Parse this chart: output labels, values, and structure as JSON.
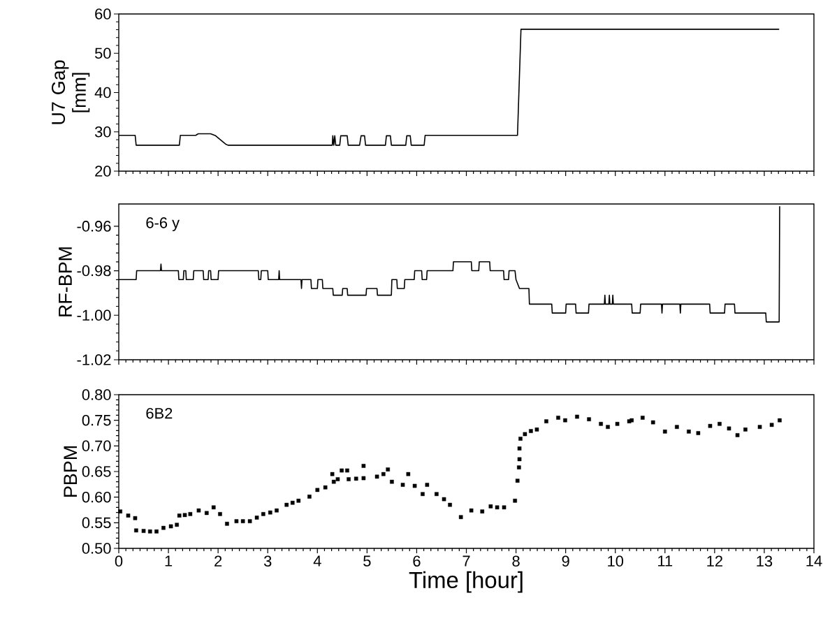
{
  "chart_data": [
    {
      "type": "line",
      "ylabel": "U7 Gap [mm]",
      "color": "#000000",
      "xlim": [
        0,
        14
      ],
      "xticks": [
        0,
        1,
        2,
        3,
        4,
        5,
        6,
        7,
        8,
        9,
        10,
        11,
        12,
        13,
        14
      ],
      "ylim": [
        20,
        60
      ],
      "yticks": [
        20,
        30,
        40,
        50,
        60
      ],
      "tick_labels": "y",
      "x": [
        0,
        0.33,
        0.35,
        1.22,
        1.24,
        1.55,
        1.6,
        1.85,
        1.95,
        2.15,
        2.2,
        4.3,
        4.31,
        4.33,
        4.35,
        4.37,
        4.45,
        4.47,
        4.6,
        4.62,
        4.85,
        4.88,
        4.95,
        4.97,
        5.37,
        5.39,
        5.47,
        5.49,
        5.78,
        5.8,
        5.87,
        5.89,
        6.15,
        6.17,
        8.03,
        8.1,
        13.3
      ],
      "values": [
        29.1,
        29.1,
        26.6,
        26.6,
        29.1,
        29.1,
        29.5,
        29.5,
        29.0,
        26.9,
        26.6,
        26.6,
        29.0,
        26.6,
        29.0,
        26.6,
        26.6,
        29.0,
        29.0,
        26.6,
        26.6,
        29.0,
        29.0,
        26.6,
        26.6,
        29.0,
        29.0,
        26.6,
        26.6,
        29.0,
        29.0,
        26.6,
        26.6,
        29.1,
        29.1,
        56.1,
        56.1
      ]
    },
    {
      "type": "line",
      "ylabel": "RF-BPM",
      "color": "#000000",
      "annotations": [
        "6-6 y"
      ],
      "xlim": [
        0,
        14
      ],
      "xticks": [
        0,
        1,
        2,
        3,
        4,
        5,
        6,
        7,
        8,
        9,
        10,
        11,
        12,
        13,
        14
      ],
      "ylim": [
        -1.02,
        -0.95
      ],
      "yticks": [
        {
          "value": -1.02,
          "label": "-1.02"
        },
        {
          "value": -1.0,
          "label": "-1.00"
        },
        {
          "value": -0.98,
          "label": "-0.98"
        },
        {
          "value": -0.96,
          "label": "-0.96"
        }
      ],
      "tick_labels": "y",
      "x": [
        0,
        0.35,
        0.36,
        0.84,
        0.85,
        0.86,
        1.2,
        1.21,
        1.3,
        1.31,
        1.35,
        1.36,
        1.5,
        1.51,
        1.7,
        1.71,
        1.8,
        1.81,
        1.85,
        1.86,
        2.0,
        2.01,
        2.81,
        2.82,
        2.86,
        2.87,
        3.0,
        3.01,
        3.22,
        3.23,
        3.24,
        3.67,
        3.68,
        3.69,
        3.87,
        3.88,
        4.0,
        4.01,
        4.1,
        4.11,
        4.31,
        4.32,
        4.5,
        4.51,
        4.6,
        4.61,
        4.98,
        4.99,
        5.2,
        5.21,
        5.49,
        5.5,
        5.6,
        5.61,
        5.75,
        5.76,
        5.95,
        5.96,
        6.1,
        6.11,
        6.2,
        6.21,
        6.73,
        6.74,
        7.1,
        7.11,
        7.25,
        7.26,
        7.47,
        7.48,
        7.75,
        7.76,
        7.85,
        7.86,
        7.98,
        8.0,
        8.07,
        8.26,
        8.27,
        8.72,
        8.73,
        9.0,
        9.01,
        9.2,
        9.21,
        9.46,
        9.47,
        9.78,
        9.79,
        9.8,
        9.87,
        9.88,
        9.89,
        9.94,
        9.95,
        9.96,
        10.33,
        10.34,
        10.5,
        10.51,
        10.93,
        10.94,
        10.95,
        11.3,
        11.31,
        11.32,
        11.9,
        11.91,
        12.2,
        12.21,
        12.4,
        12.41,
        12.64,
        12.65,
        13.03,
        13.04,
        13.3,
        13.31
      ],
      "values": [
        -0.984,
        -0.984,
        -0.98,
        -0.98,
        -0.977,
        -0.98,
        -0.98,
        -0.984,
        -0.984,
        -0.98,
        -0.98,
        -0.984,
        -0.984,
        -0.98,
        -0.98,
        -0.984,
        -0.984,
        -0.98,
        -0.98,
        -0.984,
        -0.984,
        -0.98,
        -0.98,
        -0.984,
        -0.984,
        -0.98,
        -0.98,
        -0.984,
        -0.984,
        -0.98,
        -0.984,
        -0.984,
        -0.988,
        -0.984,
        -0.984,
        -0.988,
        -0.988,
        -0.984,
        -0.984,
        -0.988,
        -0.988,
        -0.991,
        -0.991,
        -0.988,
        -0.988,
        -0.991,
        -0.991,
        -0.988,
        -0.988,
        -0.991,
        -0.991,
        -0.984,
        -0.984,
        -0.988,
        -0.988,
        -0.984,
        -0.984,
        -0.98,
        -0.98,
        -0.984,
        -0.984,
        -0.98,
        -0.98,
        -0.976,
        -0.976,
        -0.98,
        -0.98,
        -0.976,
        -0.976,
        -0.98,
        -0.98,
        -0.984,
        -0.984,
        -0.98,
        -0.98,
        -0.984,
        -0.988,
        -0.988,
        -0.995,
        -0.995,
        -0.999,
        -0.999,
        -0.995,
        -0.995,
        -0.999,
        -0.999,
        -0.995,
        -0.995,
        -0.991,
        -0.995,
        -0.995,
        -0.991,
        -0.995,
        -0.995,
        -0.991,
        -0.995,
        -0.995,
        -0.999,
        -0.999,
        -0.995,
        -0.995,
        -0.999,
        -0.995,
        -0.995,
        -0.999,
        -0.995,
        -0.995,
        -0.999,
        -0.999,
        -0.995,
        -0.995,
        -0.999,
        -0.999,
        -0.999,
        -0.999,
        -1.003,
        -1.003,
        -0.951
      ]
    },
    {
      "type": "scatter",
      "ylabel": "PBPM",
      "xlabel": "Time  [hour]",
      "color": "#000000",
      "marker": "square",
      "annotations": [
        "6B2"
      ],
      "xlim": [
        0,
        14
      ],
      "xticks": [
        0,
        1,
        2,
        3,
        4,
        5,
        6,
        7,
        8,
        9,
        10,
        11,
        12,
        13,
        14
      ],
      "ylim": [
        0.5,
        0.8
      ],
      "yticks": [
        {
          "value": 0.5,
          "label": "0.50"
        },
        0.55,
        {
          "value": 0.6,
          "label": "0.60"
        },
        0.65,
        {
          "value": 0.7,
          "label": "0.70"
        },
        0.75,
        {
          "value": 0.8,
          "label": "0.80"
        }
      ],
      "x": [
        0.03,
        0.19,
        0.33,
        0.35,
        0.5,
        0.63,
        0.76,
        0.9,
        1.05,
        1.17,
        1.22,
        1.33,
        1.44,
        1.61,
        1.77,
        1.91,
        2.04,
        2.18,
        2.37,
        2.5,
        2.64,
        2.78,
        2.91,
        3.05,
        3.18,
        3.38,
        3.5,
        3.62,
        3.84,
        4.0,
        4.16,
        4.33,
        4.41,
        4.3,
        4.49,
        4.6,
        4.63,
        4.78,
        4.93,
        4.93,
        5.2,
        5.33,
        5.42,
        5.5,
        5.72,
        5.83,
        5.96,
        6.12,
        6.21,
        6.4,
        6.55,
        6.67,
        6.89,
        7.1,
        7.32,
        7.49,
        7.62,
        7.76,
        7.98,
        8.03,
        8.06,
        8.07,
        8.07,
        8.09,
        8.18,
        8.3,
        8.42,
        8.61,
        8.85,
        8.99,
        9.23,
        9.47,
        9.71,
        9.85,
        10.04,
        10.28,
        10.33,
        10.55,
        10.76,
        11.0,
        11.24,
        11.48,
        11.67,
        11.91,
        12.1,
        12.29,
        12.46,
        12.62,
        12.91,
        13.15,
        13.31
      ],
      "values": [
        0.572,
        0.564,
        0.559,
        0.535,
        0.534,
        0.533,
        0.533,
        0.54,
        0.543,
        0.546,
        0.564,
        0.565,
        0.567,
        0.574,
        0.569,
        0.58,
        0.567,
        0.548,
        0.553,
        0.553,
        0.553,
        0.56,
        0.567,
        0.57,
        0.574,
        0.585,
        0.589,
        0.593,
        0.601,
        0.614,
        0.619,
        0.63,
        0.635,
        0.645,
        0.652,
        0.652,
        0.635,
        0.636,
        0.637,
        0.661,
        0.64,
        0.645,
        0.654,
        0.63,
        0.624,
        0.645,
        0.622,
        0.606,
        0.624,
        0.606,
        0.596,
        0.585,
        0.561,
        0.574,
        0.572,
        0.582,
        0.58,
        0.58,
        0.593,
        0.632,
        0.658,
        0.674,
        0.695,
        0.714,
        0.723,
        0.729,
        0.732,
        0.748,
        0.755,
        0.75,
        0.757,
        0.752,
        0.743,
        0.737,
        0.743,
        0.748,
        0.75,
        0.755,
        0.746,
        0.728,
        0.737,
        0.728,
        0.725,
        0.739,
        0.743,
        0.734,
        0.721,
        0.732,
        0.737,
        0.741,
        0.75
      ]
    }
  ]
}
